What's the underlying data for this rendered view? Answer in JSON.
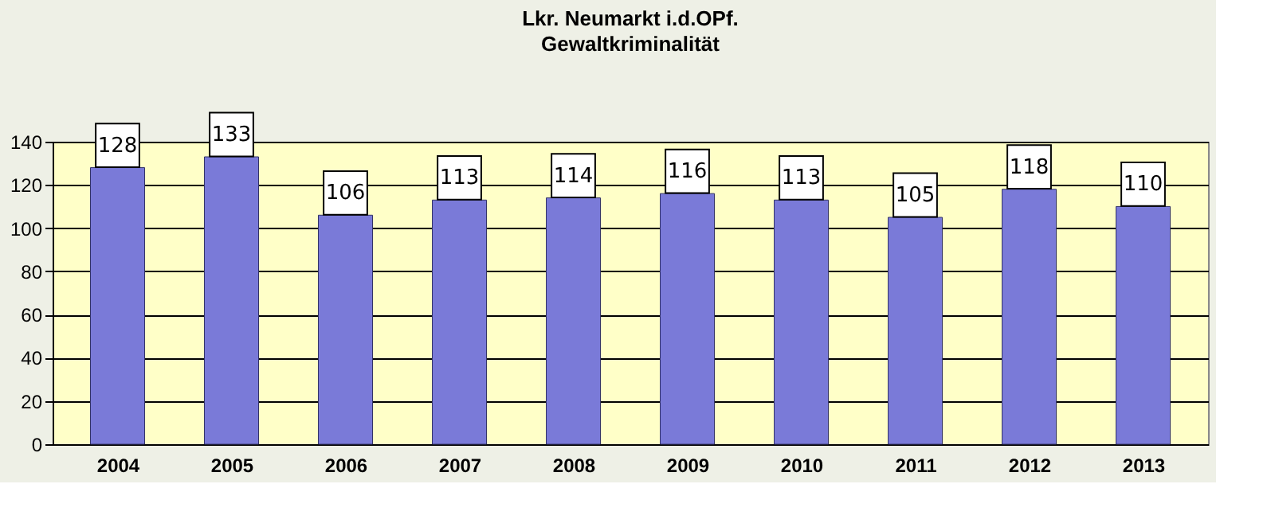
{
  "chart_data": {
    "type": "bar",
    "title": "Lkr. Neumarkt i.d.OPf.",
    "subtitle": "Gewaltkriminalität",
    "categories": [
      "2004",
      "2005",
      "2006",
      "2007",
      "2008",
      "2009",
      "2010",
      "2011",
      "2012",
      "2013"
    ],
    "values": [
      128,
      133,
      106,
      113,
      114,
      116,
      113,
      105,
      118,
      110
    ],
    "color": "#7a7ad8",
    "ylim": [
      0,
      140
    ],
    "yticks": [
      0,
      20,
      40,
      60,
      80,
      100,
      120,
      140
    ],
    "grid": "y",
    "data_labels": true
  }
}
